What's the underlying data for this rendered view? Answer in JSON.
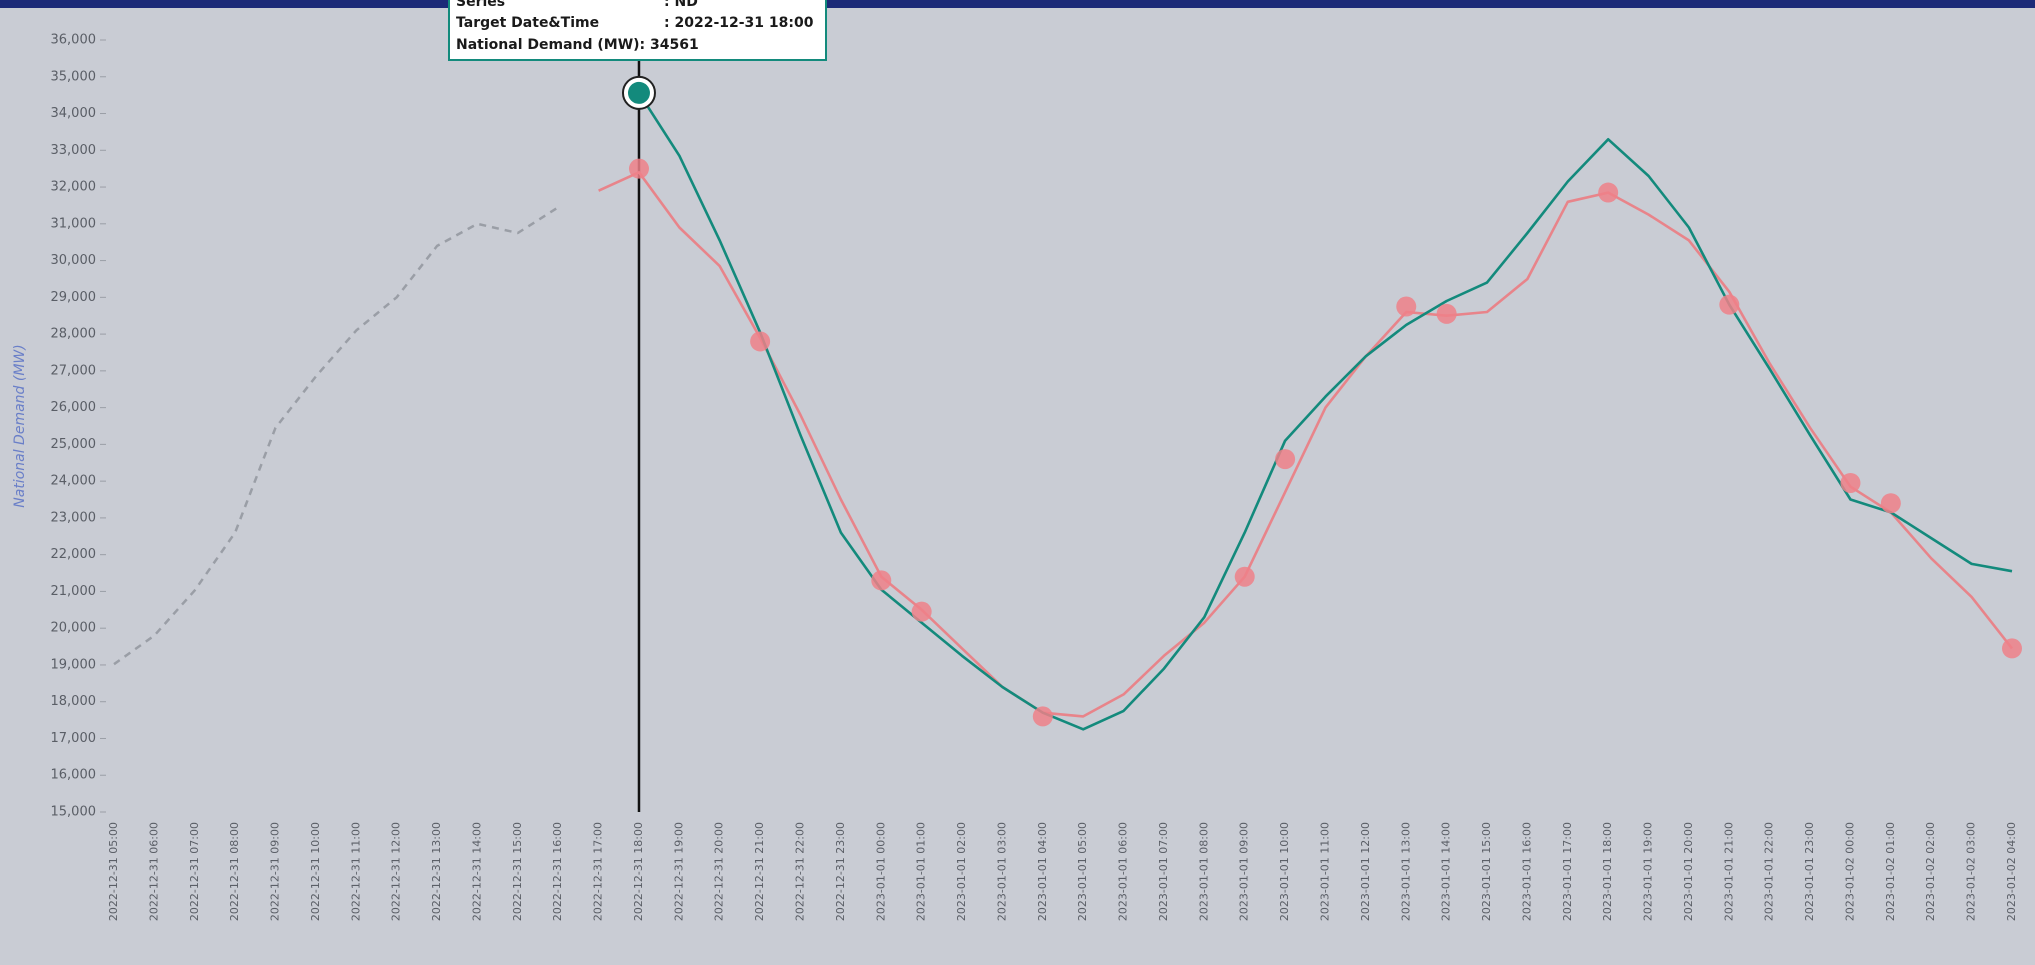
{
  "chart_data": {
    "type": "line",
    "y_label": "National Demand (MW)",
    "categories": [
      "2022-12-31 05:00",
      "2022-12-31 06:00",
      "2022-12-31 07:00",
      "2022-12-31 08:00",
      "2022-12-31 09:00",
      "2022-12-31 10:00",
      "2022-12-31 11:00",
      "2022-12-31 12:00",
      "2022-12-31 13:00",
      "2022-12-31 14:00",
      "2022-12-31 15:00",
      "2022-12-31 16:00",
      "2022-12-31 17:00",
      "2022-12-31 18:00",
      "2022-12-31 19:00",
      "2022-12-31 20:00",
      "2022-12-31 21:00",
      "2022-12-31 22:00",
      "2022-12-31 23:00",
      "2023-01-01 00:00",
      "2023-01-01 01:00",
      "2023-01-01 02:00",
      "2023-01-01 03:00",
      "2023-01-01 04:00",
      "2023-01-01 05:00",
      "2023-01-01 06:00",
      "2023-01-01 07:00",
      "2023-01-01 08:00",
      "2023-01-01 09:00",
      "2023-01-01 10:00",
      "2023-01-01 11:00",
      "2023-01-01 12:00",
      "2023-01-01 13:00",
      "2023-01-01 14:00",
      "2023-01-01 15:00",
      "2023-01-01 16:00",
      "2023-01-01 17:00",
      "2023-01-01 18:00",
      "2023-01-01 19:00",
      "2023-01-01 20:00",
      "2023-01-01 21:00",
      "2023-01-01 22:00",
      "2023-01-01 23:00",
      "2023-01-02 00:00",
      "2023-01-02 01:00",
      "2023-01-02 02:00",
      "2023-01-02 03:00",
      "2023-01-02 04:00"
    ],
    "series": [
      {
        "color": "#9a9ea6",
        "dashed": true,
        "values": [
          19020,
          19800,
          21030,
          22600,
          25450,
          26850,
          28100,
          29000,
          30400,
          31000,
          30750,
          31450,
          null,
          null,
          null,
          null,
          null,
          null,
          null,
          null,
          null,
          null,
          null,
          null,
          null,
          null,
          null,
          null,
          null,
          null,
          null,
          null,
          null,
          null,
          null,
          null,
          null,
          null,
          null,
          null,
          null,
          null,
          null,
          null,
          null,
          null,
          null,
          null
        ]
      },
      {
        "color": "#e8848a",
        "values": [
          null,
          null,
          null,
          null,
          null,
          null,
          null,
          null,
          null,
          null,
          null,
          null,
          31900,
          32400,
          30900,
          29850,
          27900,
          25800,
          23500,
          21400,
          20500,
          19450,
          18400,
          17700,
          17600,
          18200,
          19250,
          20150,
          21400,
          23700,
          26000,
          27400,
          28600,
          28500,
          28600,
          29500,
          31600,
          31850,
          31250,
          30550,
          29150,
          27200,
          25450,
          23850,
          23150,
          21900,
          20850,
          19450
        ]
      },
      {
        "color": "#138a7c",
        "values": [
          null,
          null,
          null,
          null,
          null,
          null,
          null,
          null,
          null,
          null,
          null,
          null,
          null,
          34561,
          32850,
          30550,
          28050,
          25250,
          22600,
          21050,
          20150,
          19250,
          18400,
          17700,
          17250,
          17750,
          18900,
          20300,
          22600,
          25100,
          26300,
          27400,
          28250,
          28900,
          29400,
          30750,
          32150,
          33300,
          32300,
          30900,
          28800,
          27050,
          25250,
          23500,
          23150,
          22450,
          21750,
          21550
        ]
      },
      {
        "color": "#ef8088",
        "type": "scatter",
        "values": [
          null,
          null,
          null,
          null,
          null,
          null,
          null,
          null,
          null,
          null,
          null,
          null,
          null,
          32500,
          null,
          null,
          27800,
          null,
          null,
          21300,
          20450,
          null,
          null,
          17600,
          null,
          null,
          null,
          null,
          21400,
          24600,
          null,
          null,
          28750,
          28550,
          null,
          null,
          null,
          31850,
          null,
          null,
          28800,
          null,
          null,
          23950,
          23400,
          null,
          null,
          19450
        ]
      }
    ],
    "ylim": [
      15000,
      36000
    ],
    "yticks": [
      {
        "value": 15000,
        "label": "15,000"
      },
      {
        "value": 16000,
        "label": "16,000"
      },
      {
        "value": 17000,
        "label": "17,000"
      },
      {
        "value": 18000,
        "label": "18,000"
      },
      {
        "value": 19000,
        "label": "19,000"
      },
      {
        "value": 20000,
        "label": "20,000"
      },
      {
        "value": 21000,
        "label": "21,000"
      },
      {
        "value": 22000,
        "label": "22,000"
      },
      {
        "value": 23000,
        "label": "23,000"
      },
      {
        "value": 24000,
        "label": "24,000"
      },
      {
        "value": 25000,
        "label": "25,000"
      },
      {
        "value": 26000,
        "label": "26,000"
      },
      {
        "value": 27000,
        "label": "27,000"
      },
      {
        "value": 28000,
        "label": "28,000"
      },
      {
        "value": 29000,
        "label": "29,000"
      },
      {
        "value": 30000,
        "label": "30,000"
      },
      {
        "value": 31000,
        "label": "31,000"
      },
      {
        "value": 32000,
        "label": "32,000"
      },
      {
        "value": 33000,
        "label": "33,000"
      },
      {
        "value": 34000,
        "label": "34,000"
      },
      {
        "value": 35000,
        "label": "35,000"
      },
      {
        "value": 36000,
        "label": "36,000"
      }
    ],
    "tooltip": {
      "rows": [
        [
          "Series",
          ": ND"
        ],
        [
          "Target Date&Time",
          ": 2022-12-31 18:00"
        ],
        [
          "National Demand (MW): 34561"
        ]
      ]
    }
  }
}
